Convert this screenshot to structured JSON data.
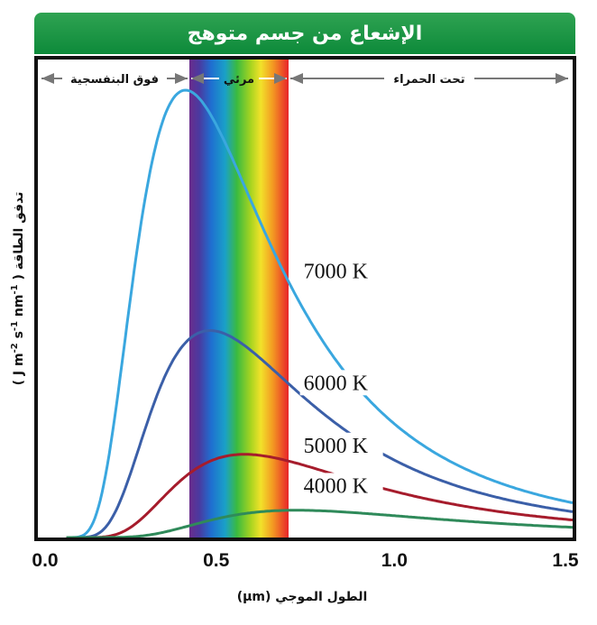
{
  "chart_data": {
    "type": "line",
    "title": "الإشعاع من جسم متوهج",
    "xlabel": "الطول الموجي (μm)",
    "ylabel": "تدفق الطاقة ( J m-2 s-1 nm-1 )",
    "ylabel_parts": {
      "prefix": "تدفق الطاقة ( J m",
      "sup1": "-2",
      "mid1": " s",
      "sup2": "-1",
      "mid2": " nm",
      "sup3": "-1",
      "suffix": " )"
    },
    "xlim": [
      0,
      1.5
    ],
    "ylim": [
      0,
      1
    ],
    "x_ticks": [
      "0.0",
      "0.5",
      "1.0",
      "1.5"
    ],
    "x_tick_values": [
      0,
      0.5,
      1.0,
      1.5
    ],
    "bands": [
      {
        "name": "فوق البنفسجية",
        "range": [
          0.0,
          0.42
        ]
      },
      {
        "name": "مرئي",
        "range": [
          0.42,
          0.7
        ]
      },
      {
        "name": "تحت الحمراء",
        "range": [
          0.7,
          1.5
        ]
      }
    ],
    "series": [
      {
        "name": "7000 K",
        "temperature": 7000,
        "color": "#3aa7df",
        "label_at": [
          0.72,
          0.58
        ]
      },
      {
        "name": "6000 K",
        "temperature": 6000,
        "color": "#3b5fa8",
        "label_at": [
          0.72,
          0.33
        ]
      },
      {
        "name": "5000 K",
        "temperature": 5000,
        "color": "#a61c2c",
        "label_at": [
          0.72,
          0.19
        ]
      },
      {
        "name": "4000 K",
        "temperature": 4000,
        "color": "#2f8a5a",
        "label_at": [
          0.72,
          0.1
        ]
      }
    ],
    "peak_values": {
      "7000 K": 1.0,
      "6000 K": 0.46,
      "5000 K": 0.187,
      "4000 K": 0.061
    },
    "grid": false,
    "legend": "inline"
  }
}
